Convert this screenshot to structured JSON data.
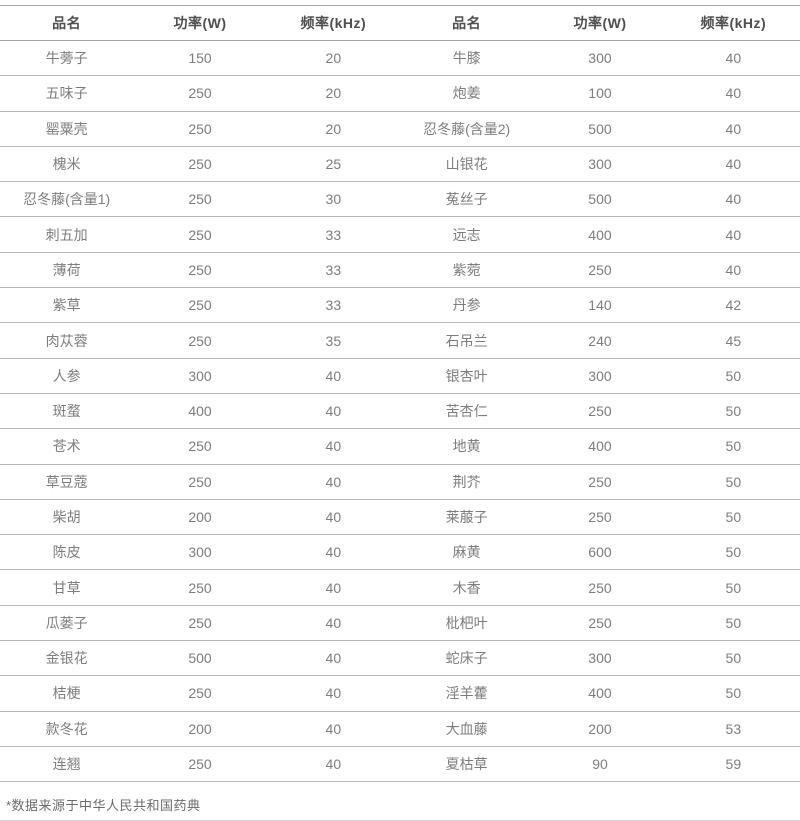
{
  "table": {
    "headers": [
      "品名",
      "功率(W)",
      "频率(kHz)",
      "品名",
      "功率(W)",
      "频率(kHz)"
    ],
    "rows": [
      [
        "牛蒡子",
        "150",
        "20",
        "牛膝",
        "300",
        "40"
      ],
      [
        "五味子",
        "250",
        "20",
        "炮姜",
        "100",
        "40"
      ],
      [
        "罂粟壳",
        "250",
        "20",
        "忍冬藤(含量2)",
        "500",
        "40"
      ],
      [
        "槐米",
        "250",
        "25",
        "山银花",
        "300",
        "40"
      ],
      [
        "忍冬藤(含量1)",
        "250",
        "30",
        "菟丝子",
        "500",
        "40"
      ],
      [
        "刺五加",
        "250",
        "33",
        "远志",
        "400",
        "40"
      ],
      [
        "薄荷",
        "250",
        "33",
        "紫菀",
        "250",
        "40"
      ],
      [
        "紫草",
        "250",
        "33",
        "丹参",
        "140",
        "42"
      ],
      [
        "肉苁蓉",
        "250",
        "35",
        "石吊兰",
        "240",
        "45"
      ],
      [
        "人参",
        "300",
        "40",
        "银杏叶",
        "300",
        "50"
      ],
      [
        "斑蝥",
        "400",
        "40",
        "苦杏仁",
        "250",
        "50"
      ],
      [
        "苍术",
        "250",
        "40",
        "地黄",
        "400",
        "50"
      ],
      [
        "草豆蔻",
        "250",
        "40",
        "荆芥",
        "250",
        "50"
      ],
      [
        "柴胡",
        "200",
        "40",
        "莱菔子",
        "250",
        "50"
      ],
      [
        "陈皮",
        "300",
        "40",
        "麻黄",
        "600",
        "50"
      ],
      [
        "甘草",
        "250",
        "40",
        "木香",
        "250",
        "50"
      ],
      [
        "瓜蒌子",
        "250",
        "40",
        "枇杷叶",
        "250",
        "50"
      ],
      [
        "金银花",
        "500",
        "40",
        "蛇床子",
        "300",
        "50"
      ],
      [
        "桔梗",
        "250",
        "40",
        "淫羊藿",
        "400",
        "50"
      ],
      [
        "款冬花",
        "200",
        "40",
        "大血藤",
        "200",
        "53"
      ],
      [
        "连翘",
        "250",
        "40",
        "夏枯草",
        "90",
        "59"
      ]
    ]
  },
  "footer": {
    "note": "*数据来源于中华人民共和国药典"
  },
  "colors": {
    "header_text": "#4f4f4f",
    "body_text": "#7d7d7d",
    "rule_dark": "#a4a4a4",
    "rule_light": "#b9b9b9"
  },
  "chart_data": {
    "type": "table",
    "columns": [
      "品名",
      "功率(W)",
      "频率(kHz)",
      "品名",
      "功率(W)",
      "频率(kHz)"
    ],
    "rows": [
      [
        "牛蒡子",
        150,
        20,
        "牛膝",
        300,
        40
      ],
      [
        "五味子",
        250,
        20,
        "炮姜",
        100,
        40
      ],
      [
        "罂粟壳",
        250,
        20,
        "忍冬藤(含量2)",
        500,
        40
      ],
      [
        "槐米",
        250,
        25,
        "山银花",
        300,
        40
      ],
      [
        "忍冬藤(含量1)",
        250,
        30,
        "菟丝子",
        500,
        40
      ],
      [
        "刺五加",
        250,
        33,
        "远志",
        400,
        40
      ],
      [
        "薄荷",
        250,
        33,
        "紫菀",
        250,
        40
      ],
      [
        "紫草",
        250,
        33,
        "丹参",
        140,
        42
      ],
      [
        "肉苁蓉",
        250,
        35,
        "石吊兰",
        240,
        45
      ],
      [
        "人参",
        300,
        40,
        "银杏叶",
        300,
        50
      ],
      [
        "斑蝥",
        400,
        40,
        "苦杏仁",
        250,
        50
      ],
      [
        "苍术",
        250,
        40,
        "地黄",
        400,
        50
      ],
      [
        "草豆蔻",
        250,
        40,
        "荆芥",
        250,
        50
      ],
      [
        "柴胡",
        200,
        40,
        "莱菔子",
        250,
        50
      ],
      [
        "陈皮",
        300,
        40,
        "麻黄",
        600,
        50
      ],
      [
        "甘草",
        250,
        40,
        "木香",
        250,
        50
      ],
      [
        "瓜蒌子",
        250,
        40,
        "枇杷叶",
        250,
        50
      ],
      [
        "金银花",
        500,
        40,
        "蛇床子",
        300,
        50
      ],
      [
        "桔梗",
        250,
        40,
        "淫羊藿",
        400,
        50
      ],
      [
        "款冬花",
        200,
        40,
        "大血藤",
        200,
        53
      ],
      [
        "连翘",
        250,
        40,
        "夏枯草",
        90,
        59
      ]
    ],
    "footnote": "*数据来源于中华人民共和国药典"
  }
}
